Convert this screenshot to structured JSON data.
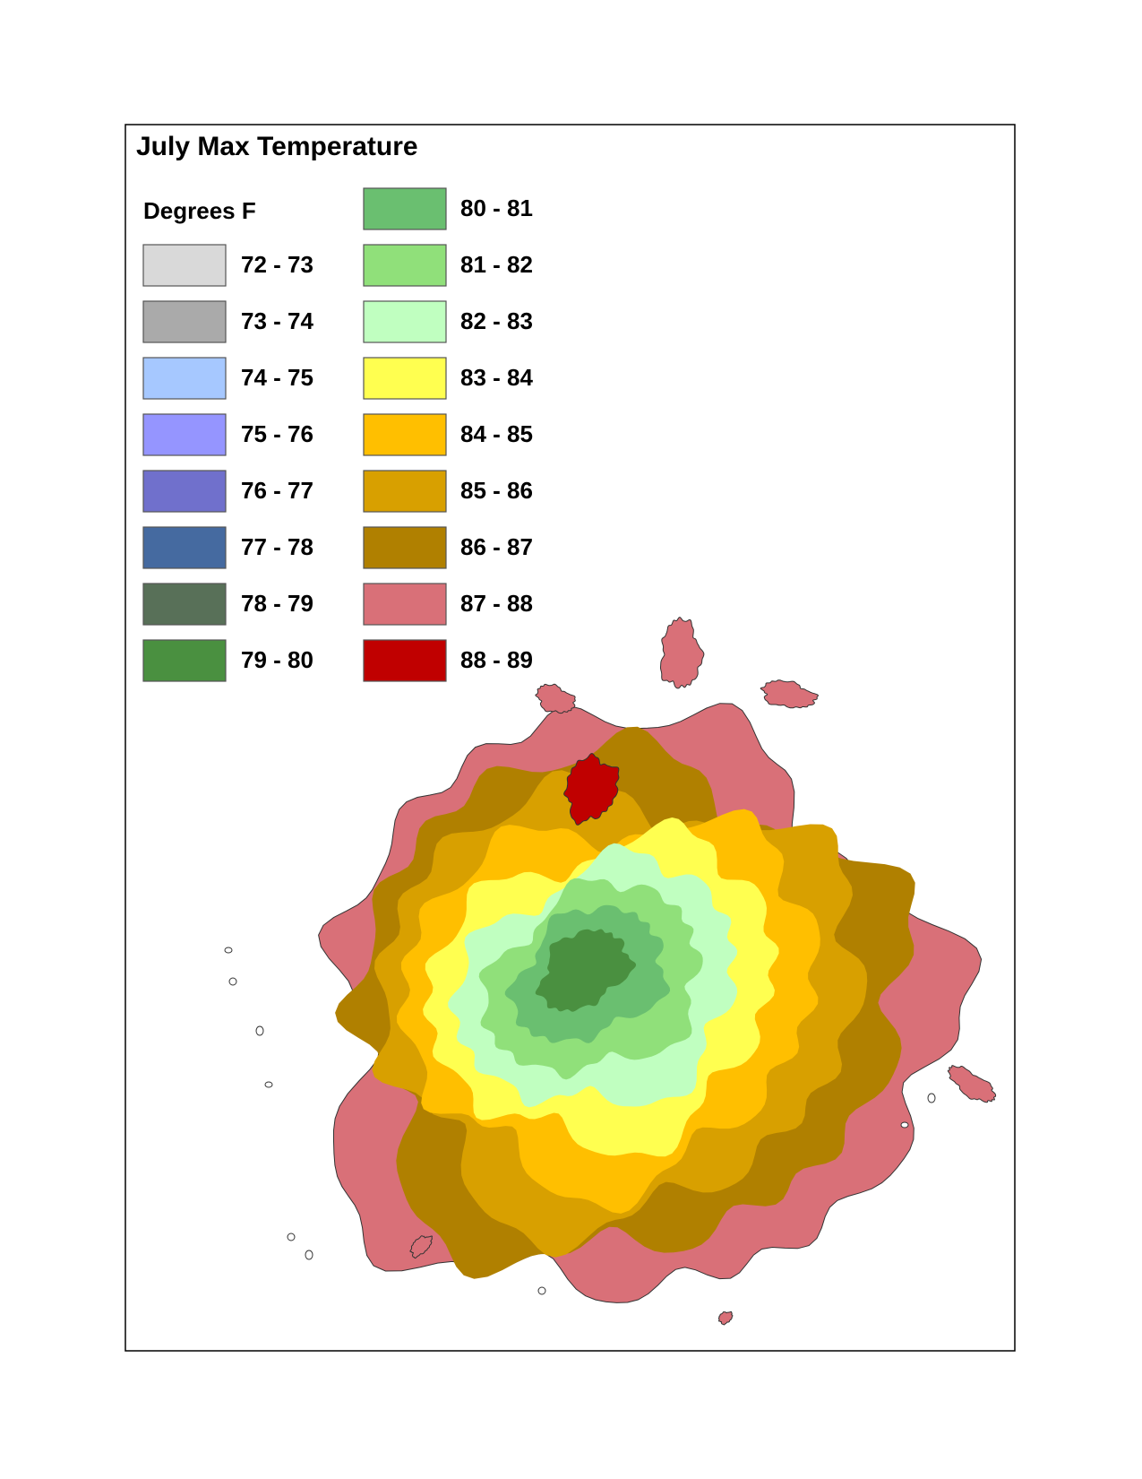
{
  "title": "July Max Temperature",
  "legend": {
    "title": "Degrees F",
    "items": [
      {
        "label": "72 - 73",
        "color": "#d9d9d9"
      },
      {
        "label": "73 - 74",
        "color": "#aaaaaa"
      },
      {
        "label": "74 - 75",
        "color": "#a6c8ff"
      },
      {
        "label": "75 - 76",
        "color": "#9595ff"
      },
      {
        "label": "76 - 77",
        "color": "#7070cc"
      },
      {
        "label": "77 - 78",
        "color": "#456aa0"
      },
      {
        "label": "78 - 79",
        "color": "#587058"
      },
      {
        "label": "79 - 80",
        "color": "#4a9040"
      },
      {
        "label": "80 - 81",
        "color": "#6abf70"
      },
      {
        "label": "81 - 82",
        "color": "#90e07a"
      },
      {
        "label": "82 - 83",
        "color": "#c0ffc0"
      },
      {
        "label": "83 - 84",
        "color": "#ffff50"
      },
      {
        "label": "84 - 85",
        "color": "#ffbf00"
      },
      {
        "label": "85 - 86",
        "color": "#d8a000"
      },
      {
        "label": "86 - 87",
        "color": "#b08000"
      },
      {
        "label": "87 - 88",
        "color": "#d97078"
      },
      {
        "label": "88 - 89",
        "color": "#c00000"
      }
    ]
  }
}
